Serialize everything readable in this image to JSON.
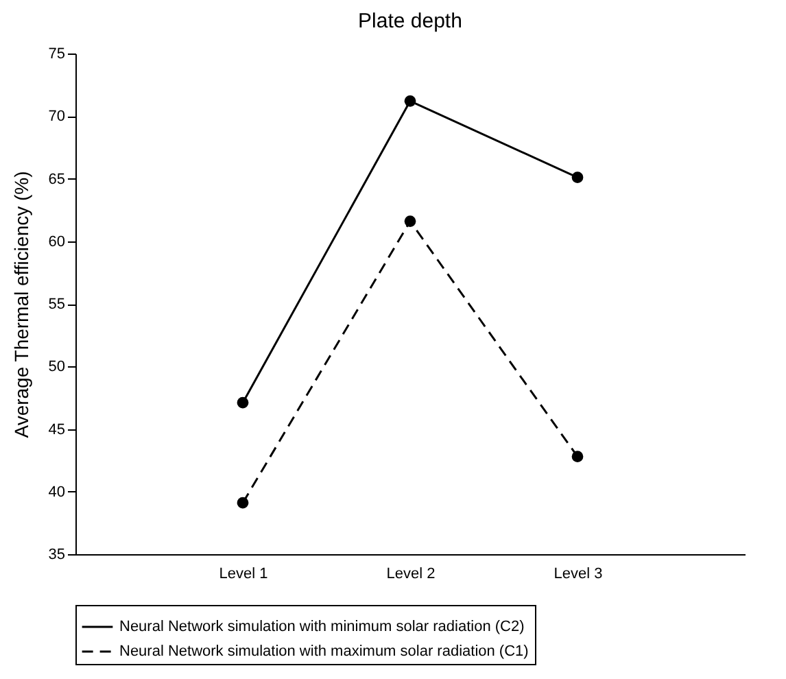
{
  "chart_data": {
    "type": "line",
    "title": "Plate depth",
    "ylabel": "Average Thermal efficiency (%)",
    "categories": [
      "Level 1",
      "Level 2",
      "Level 3"
    ],
    "series": [
      {
        "name": "Neural Network simulation with minimum solar radiation (C2)",
        "color": "#000000",
        "line_style": "solid",
        "values": [
          47.1,
          71.2,
          65.1
        ]
      },
      {
        "name": "Neural Network simulation with maximum solar radiation (C1)",
        "color": "#000000",
        "line_style": "dashed",
        "values": [
          39.1,
          61.6,
          42.8
        ]
      }
    ],
    "ylim": [
      35,
      75
    ],
    "yticks": [
      35,
      40,
      45,
      50,
      55,
      60,
      65,
      70,
      75
    ],
    "grid": false,
    "legend": "bottom",
    "marker": "circle"
  }
}
